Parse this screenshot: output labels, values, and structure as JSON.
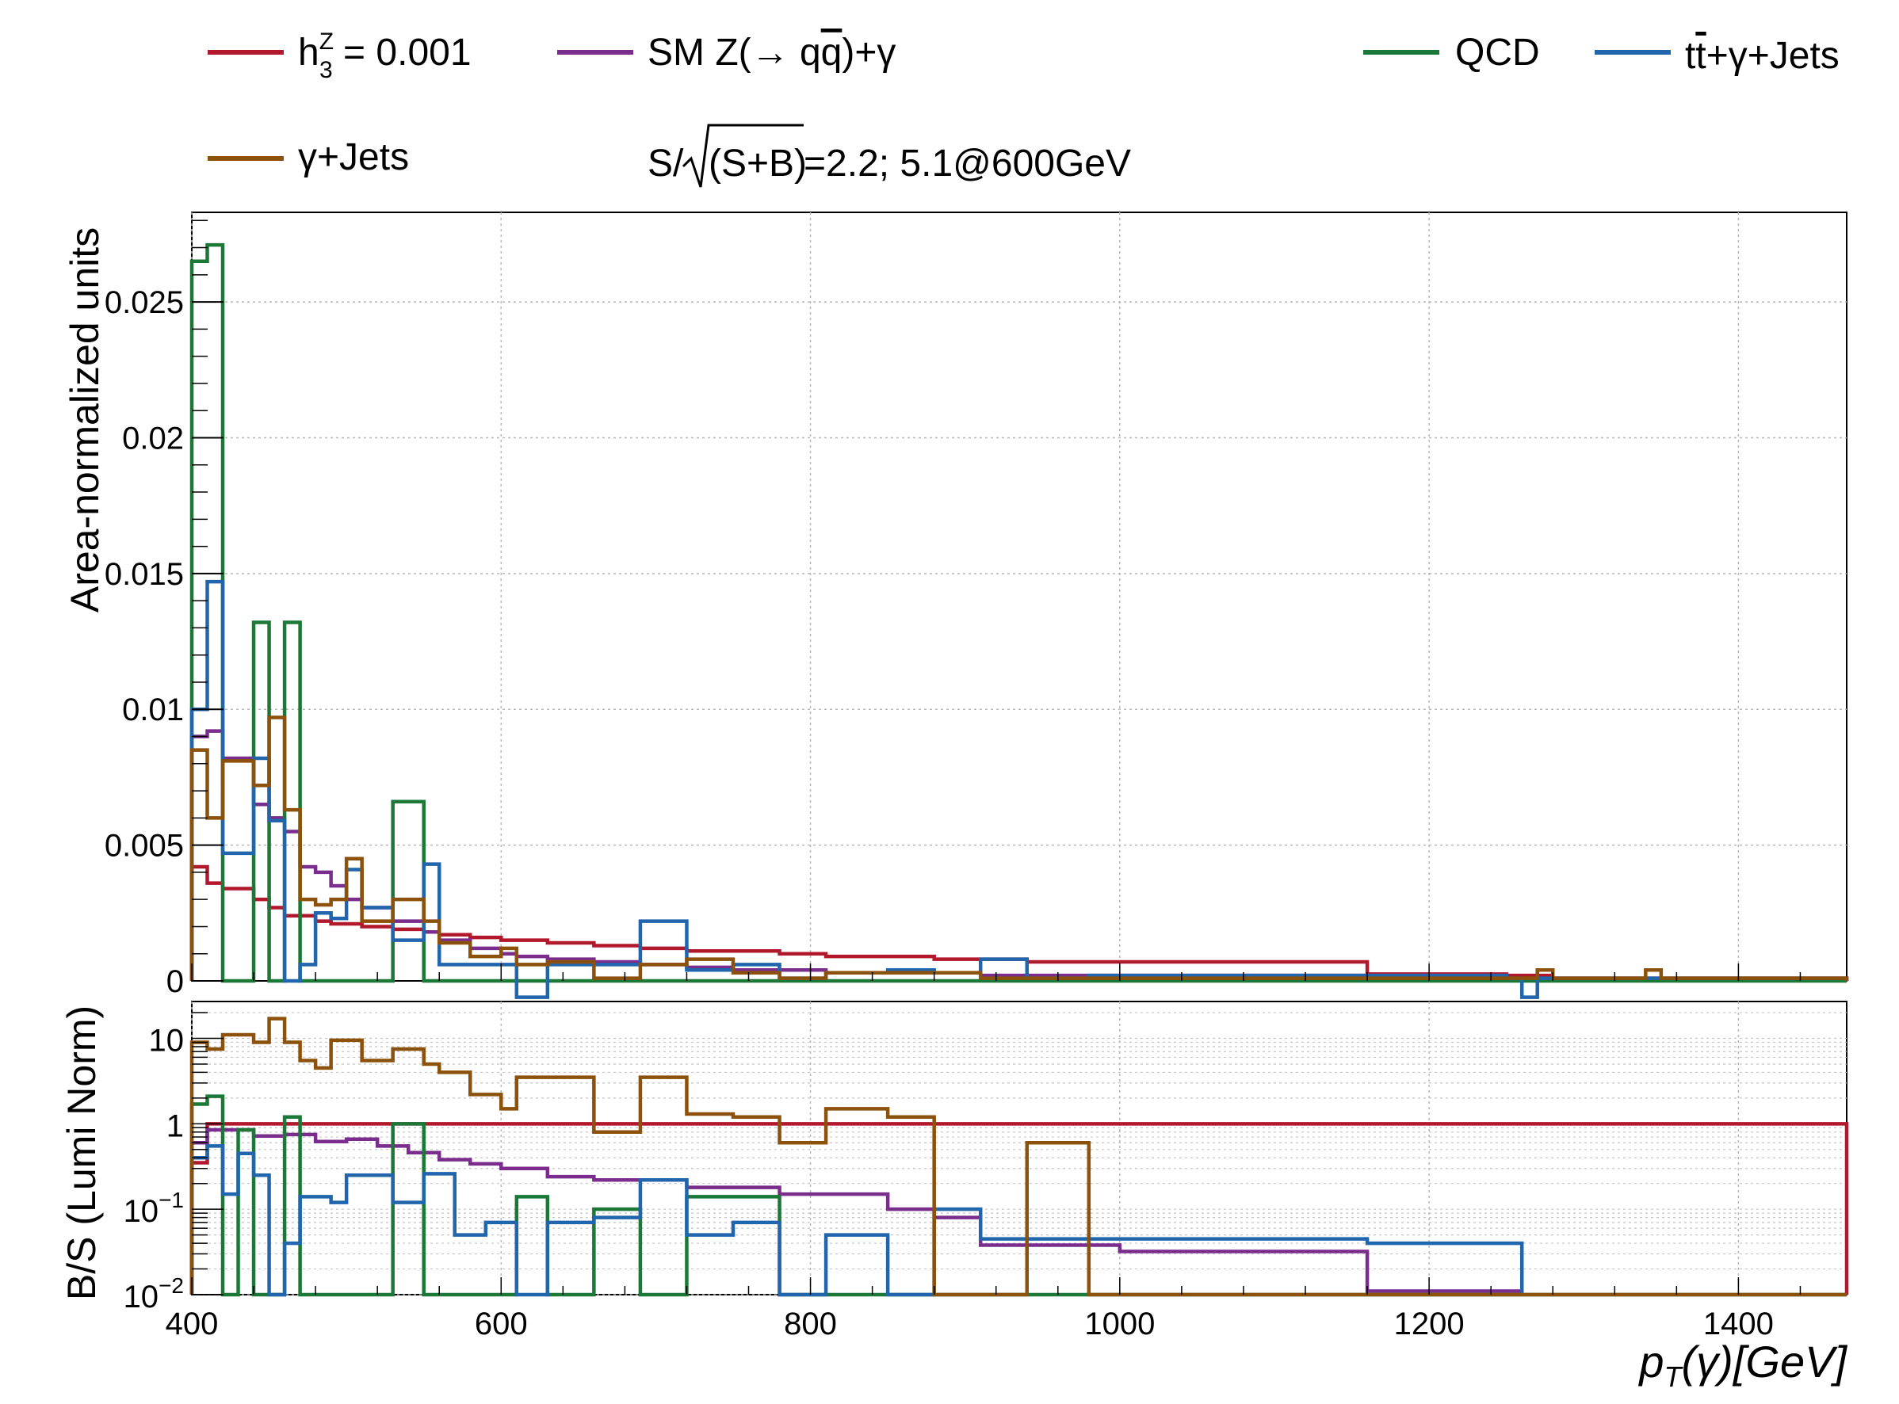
{
  "legend": {
    "items": [
      {
        "key": "signal",
        "text": "h",
        "sup": "Z",
        "sub": "3",
        "rest": " = 0.001",
        "color": "#b2182b"
      },
      {
        "key": "smz",
        "text": "SM Z(→ q",
        "qbar": "q",
        "rest": ")+γ",
        "color": "#7b2d8e"
      },
      {
        "key": "qcd",
        "text": "QCD",
        "color": "#1b7837"
      },
      {
        "key": "ttbar",
        "text": "t",
        "tbar": "t",
        "rest": "+γ+Jets",
        "color": "#2166ac"
      },
      {
        "key": "gjets",
        "text": "γ+Jets",
        "color": "#8c510a"
      }
    ],
    "significance": {
      "prefix": "S/",
      "radicand": "(S+B)",
      "suffix": "=2.2; 5.1@600GeV"
    }
  },
  "axes": {
    "top_ylabel": "Area-normalized units",
    "bottom_ylabel": "B/S (Lumi Norm)",
    "xlabel_parts": {
      "p": "p",
      "sub": "T",
      "rest": "(γ)[GeV]"
    },
    "x_ticks": [
      "400",
      "600",
      "800",
      "1000",
      "1200",
      "1400"
    ],
    "top_y_ticks": [
      "0",
      "0.005",
      "0.01",
      "0.015",
      "0.02",
      "0.025"
    ],
    "bottom_y_ticks": [
      {
        "base": "10",
        "exp": "−2"
      },
      {
        "base": "10",
        "exp": "−1"
      },
      {
        "base": "1",
        "exp": ""
      },
      {
        "base": "10",
        "exp": ""
      }
    ]
  },
  "chart_data": [
    {
      "type": "line",
      "step": true,
      "title": "",
      "xlabel": "p_T(γ)[GeV]",
      "ylabel": "Area-normalized units",
      "xlim": [
        400,
        1470
      ],
      "ylim": [
        0,
        0.0283
      ],
      "grid": true,
      "legend_position": "top",
      "bin_edges": [
        400,
        410,
        420,
        440,
        450,
        460,
        470,
        480,
        490,
        500,
        510,
        530,
        550,
        560,
        580,
        600,
        610,
        630,
        660,
        690,
        720,
        750,
        780,
        810,
        850,
        880,
        910,
        940,
        980,
        1160,
        1250,
        1260,
        1270,
        1280,
        1340,
        1350,
        1470
      ],
      "series": [
        {
          "name": "h_3^Z = 0.001",
          "color": "#b2182b",
          "values": [
            0.0042,
            0.0036,
            0.0034,
            0.003,
            0.0027,
            0.0024,
            0.0024,
            0.0022,
            0.0021,
            0.0021,
            0.002,
            0.0019,
            0.0018,
            0.0017,
            0.0016,
            0.0015,
            0.0015,
            0.0014,
            0.0013,
            0.0012,
            0.0011,
            0.0011,
            0.001,
            0.0009,
            0.0009,
            0.0008,
            0.0008,
            0.0007,
            0.0007,
            0.00025,
            0.0002,
            0.0002,
            0.0002,
            0.0001,
            0.0001,
            0.0001
          ]
        },
        {
          "name": "SM Z(→ qq̄)+γ",
          "color": "#7b2d8e",
          "values": [
            0.009,
            0.0092,
            0.0082,
            0.0065,
            0.006,
            0.0055,
            0.0042,
            0.004,
            0.0035,
            0.003,
            0.0027,
            0.0022,
            0.0018,
            0.0015,
            0.0012,
            0.001,
            0.0009,
            0.0008,
            0.0007,
            0.0006,
            0.0005,
            0.0004,
            0.0004,
            0.0003,
            0.0003,
            0.0003,
            0.0002,
            0.0002,
            0.0002,
            0.0001,
            5e-05,
            5e-05,
            5e-05,
            5e-05,
            5e-05,
            5e-05
          ]
        },
        {
          "name": "QCD",
          "color": "#1b7837",
          "values": [
            0.0265,
            0.0271,
            0,
            0.0132,
            0,
            0.0132,
            0,
            0,
            0,
            0,
            0,
            0.0066,
            0,
            0,
            0,
            0,
            0,
            0,
            0,
            0,
            0,
            0,
            0,
            0,
            0,
            0,
            0,
            0,
            0,
            0,
            0,
            0,
            0,
            0,
            0,
            0
          ]
        },
        {
          "name": "t̄t+γ+Jets",
          "color": "#2166ac",
          "values": [
            0.01,
            0.0147,
            0.0047,
            0.0082,
            0.0059,
            0,
            0.0006,
            0.0025,
            0.0023,
            0.0041,
            0.0027,
            0.0015,
            0.0043,
            0.0006,
            0.0006,
            0.0006,
            -0.0006,
            0.0006,
            0.0006,
            0.0022,
            0.0004,
            0.0006,
            0.0001,
            0.0003,
            0.0004,
            0.0003,
            0.0008,
            0.0001,
            0.0002,
            0.0002,
            0.0001,
            -0.0006,
            0.0001,
            0.0001,
            0.0001,
            0.0001
          ]
        },
        {
          "name": "γ+Jets",
          "color": "#8c510a",
          "values": [
            0.0085,
            0.006,
            0.0081,
            0.0072,
            0.0097,
            0.0063,
            0.003,
            0.0028,
            0.003,
            0.0045,
            0.0022,
            0.003,
            0.0022,
            0.0014,
            0.0009,
            0.0012,
            0.0006,
            0.0007,
            0.0001,
            0.0006,
            0.0008,
            0.0003,
            0.0001,
            0.0003,
            0.0003,
            0.0003,
            0.0001,
            0.0001,
            0.0001,
            0.0001,
            0.0001,
            0.0001,
            0.0004,
            0.0001,
            0.0004,
            0.0001
          ]
        }
      ]
    },
    {
      "type": "line",
      "step": true,
      "title": "",
      "xlabel": "p_T(γ)[GeV]",
      "ylabel": "B/S (Lumi Norm)",
      "xlim": [
        400,
        1470
      ],
      "ylim": [
        0.01,
        27
      ],
      "yscale": "log",
      "grid": true,
      "series": [
        {
          "name": "h_3^Z = 0.001",
          "color": "#b2182b",
          "bins": [
            [
              400,
              410,
              0.35
            ],
            [
              410,
              1470,
              1.0
            ]
          ]
        },
        {
          "name": "SM Z(→ qq̄)+γ",
          "color": "#7b2d8e",
          "bins": [
            [
              400,
              410,
              0.6
            ],
            [
              410,
              440,
              0.85
            ],
            [
              440,
              460,
              0.72
            ],
            [
              460,
              480,
              0.75
            ],
            [
              480,
              500,
              0.62
            ],
            [
              500,
              520,
              0.66
            ],
            [
              520,
              540,
              0.55
            ],
            [
              540,
              560,
              0.46
            ],
            [
              560,
              580,
              0.38
            ],
            [
              580,
              600,
              0.34
            ],
            [
              600,
              630,
              0.3
            ],
            [
              630,
              660,
              0.24
            ],
            [
              660,
              720,
              0.22
            ],
            [
              720,
              780,
              0.18
            ],
            [
              780,
              850,
              0.15
            ],
            [
              850,
              880,
              0.1
            ],
            [
              880,
              910,
              0.08
            ],
            [
              910,
              1000,
              0.038
            ],
            [
              1000,
              1160,
              0.032
            ],
            [
              1160,
              1260,
              0.011
            ]
          ]
        },
        {
          "name": "QCD",
          "color": "#1b7837",
          "bins": [
            [
              400,
              410,
              1.7
            ],
            [
              410,
              420,
              2.1
            ],
            [
              420,
              430,
              0.01
            ],
            [
              430,
              440,
              0.85
            ],
            [
              440,
              450,
              0.01
            ],
            [
              450,
              460,
              0.01
            ],
            [
              460,
              470,
              1.2
            ],
            [
              470,
              530,
              0.01
            ],
            [
              530,
              550,
              1.0
            ],
            [
              550,
              610,
              0.01
            ],
            [
              610,
              630,
              0.14
            ],
            [
              630,
              660,
              0.01
            ],
            [
              660,
              690,
              0.1
            ],
            [
              690,
              720,
              0.01
            ],
            [
              720,
              780,
              0.14
            ],
            [
              780,
              1470,
              0.01
            ]
          ]
        },
        {
          "name": "t̄t+γ+Jets",
          "color": "#2166ac",
          "bins": [
            [
              400,
              410,
              0.4
            ],
            [
              410,
              420,
              0.55
            ],
            [
              420,
              430,
              0.15
            ],
            [
              430,
              440,
              0.45
            ],
            [
              440,
              450,
              0.25
            ],
            [
              450,
              460,
              0.01
            ],
            [
              460,
              470,
              0.04
            ],
            [
              470,
              490,
              0.14
            ],
            [
              490,
              500,
              0.12
            ],
            [
              500,
              530,
              0.25
            ],
            [
              530,
              550,
              0.12
            ],
            [
              550,
              570,
              0.26
            ],
            [
              570,
              590,
              0.05
            ],
            [
              590,
              610,
              0.07
            ],
            [
              610,
              630,
              0.01
            ],
            [
              630,
              660,
              0.07
            ],
            [
              660,
              690,
              0.08
            ],
            [
              690,
              720,
              0.22
            ],
            [
              720,
              750,
              0.05
            ],
            [
              750,
              780,
              0.07
            ],
            [
              780,
              810,
              0.01
            ],
            [
              810,
              850,
              0.05
            ],
            [
              850,
              880,
              0.01
            ],
            [
              880,
              910,
              0.1
            ],
            [
              910,
              1160,
              0.045
            ],
            [
              1160,
              1260,
              0.04
            ]
          ]
        },
        {
          "name": "γ+Jets",
          "color": "#8c510a",
          "bins": [
            [
              400,
              410,
              9
            ],
            [
              410,
              420,
              7.5
            ],
            [
              420,
              440,
              11
            ],
            [
              440,
              450,
              9
            ],
            [
              450,
              460,
              17
            ],
            [
              460,
              470,
              9
            ],
            [
              470,
              480,
              5.5
            ],
            [
              480,
              490,
              4.5
            ],
            [
              490,
              510,
              9.5
            ],
            [
              510,
              530,
              5.5
            ],
            [
              530,
              550,
              7.5
            ],
            [
              550,
              560,
              5
            ],
            [
              560,
              580,
              4
            ],
            [
              580,
              600,
              2.2
            ],
            [
              600,
              610,
              1.5
            ],
            [
              610,
              630,
              3.5
            ],
            [
              630,
              660,
              3.5
            ],
            [
              660,
              690,
              0.8
            ],
            [
              690,
              720,
              3.5
            ],
            [
              720,
              750,
              1.3
            ],
            [
              750,
              780,
              1.2
            ],
            [
              780,
              810,
              0.6
            ],
            [
              810,
              850,
              1.5
            ],
            [
              850,
              880,
              1.2
            ],
            [
              880,
              940,
              0.01
            ],
            [
              940,
              980,
              0.6
            ],
            [
              980,
              1470,
              0.01
            ]
          ]
        }
      ]
    }
  ]
}
